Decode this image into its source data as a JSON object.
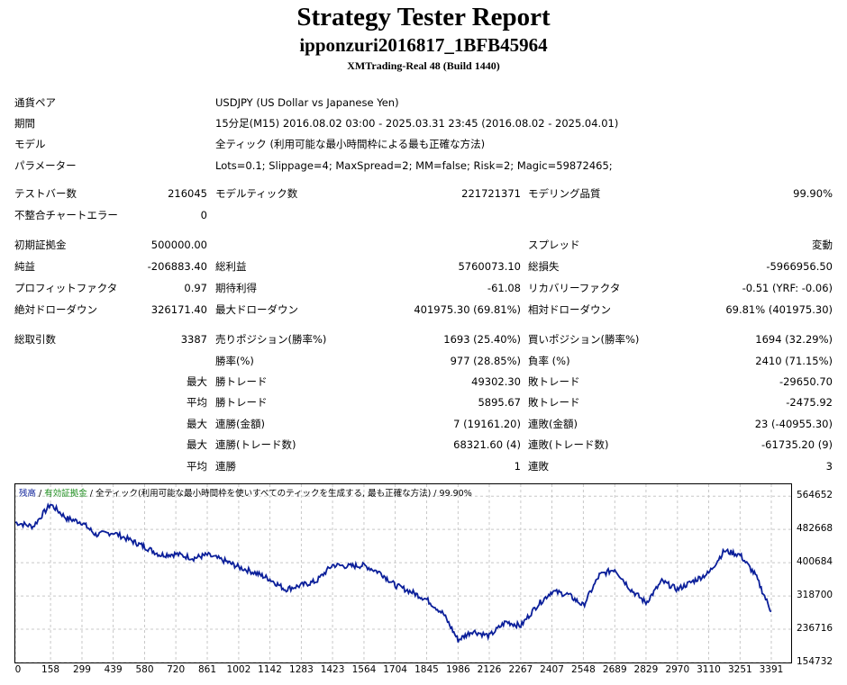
{
  "header": {
    "title": "Strategy Tester Report",
    "subtitle": "ipponzuri2016817_1BFB45964",
    "server": "XMTrading-Real 48 (Build 1440)"
  },
  "info": {
    "pair_label": "通貨ペア",
    "pair_value": "USDJPY (US Dollar vs Japanese Yen)",
    "period_label": "期間",
    "period_value": "15分足(M15) 2016.08.02 03:00 - 2025.03.31 23:45 (2016.08.02 - 2025.04.01)",
    "model_label": "モデル",
    "model_value": "全ティック (利用可能な最小時間枠による最も正確な方法)",
    "params_label": "パラメーター",
    "params_value": "Lots=0.1; Slippage=4; MaxSpread=2; MM=false; Risk=2; Magic=59872465;"
  },
  "stats": {
    "bars_label": "テストバー数",
    "bars_value": "216045",
    "ticks_label": "モデルティック数",
    "ticks_value": "221721371",
    "quality_label": "モデリング品質",
    "quality_value": "99.90%",
    "mismatch_label": "不整合チャートエラー",
    "mismatch_value": "0",
    "deposit_label": "初期証拠金",
    "deposit_value": "500000.00",
    "spread_label": "スプレッド",
    "spread_value": "変動",
    "net_label": "純益",
    "net_value": "-206883.40",
    "gross_profit_label": "総利益",
    "gross_profit_value": "5760073.10",
    "gross_loss_label": "総損失",
    "gross_loss_value": "-5966956.50",
    "pf_label": "プロフィットファクタ",
    "pf_value": "0.97",
    "expected_label": "期待利得",
    "expected_value": "-61.08",
    "recovery_label": "リカバリーファクタ",
    "recovery_value": "-0.51 (YRF: -0.06)",
    "abs_dd_label": "絶対ドローダウン",
    "abs_dd_value": "326171.40",
    "max_dd_label": "最大ドローダウン",
    "max_dd_value": "401975.30 (69.81%)",
    "rel_dd_label": "相対ドローダウン",
    "rel_dd_value": "69.81% (401975.30)",
    "total_trades_label": "総取引数",
    "total_trades_value": "3387",
    "short_label": "売りポジション(勝率%)",
    "short_value": "1693 (25.40%)",
    "long_label": "買いポジション(勝率%)",
    "long_value": "1694 (32.29%)",
    "win_pct_label": "勝率(%)",
    "win_pct_value": "977 (28.85%)",
    "loss_pct_label": "負率 (%)",
    "loss_pct_value": "2410 (71.15%)",
    "max_word": "最大",
    "avg_word": "平均",
    "win_trade_label": "勝トレード",
    "loss_trade_label": "敗トレード",
    "largest_win_value": "49302.30",
    "largest_loss_value": "-29650.70",
    "avg_win_value": "5895.67",
    "avg_loss_value": "-2475.92",
    "consec_win_amt_label": "連勝(金額)",
    "consec_win_amt_value": "7 (19161.20)",
    "consec_loss_amt_label": "連敗(金額)",
    "consec_loss_amt_value": "23 (-40955.30)",
    "consec_win_cnt_label": "連勝(トレード数)",
    "consec_win_cnt_value": "68321.60 (4)",
    "consec_loss_cnt_label": "連敗(トレード数)",
    "consec_loss_cnt_value": "-61735.20 (9)",
    "avg_consec_win_label": "連勝",
    "avg_consec_win_value": "1",
    "avg_consec_loss_label": "連敗",
    "avg_consec_loss_value": "3"
  },
  "chart_legend": {
    "balance": "残高",
    "equity": "有効証拠金",
    "mid": " / 全ティック(利用可能な最小時間枠を使いすべてのティックを生成する, 最も正確な方法) / 99.90%"
  },
  "colors": {
    "balance_line": "#0b1f9a",
    "equity_legend": "#1f8f1f",
    "grid": "#c8c8c8"
  },
  "chart_data": {
    "type": "line",
    "series": [
      {
        "name": "残高",
        "x": [
          0,
          80,
          158,
          230,
          299,
          360,
          439,
          520,
          580,
          650,
          720,
          800,
          861,
          940,
          1002,
          1080,
          1142,
          1210,
          1283,
          1350,
          1423,
          1500,
          1564,
          1640,
          1704,
          1780,
          1845,
          1920,
          1986,
          2050,
          2126,
          2200,
          2267,
          2340,
          2407,
          2480,
          2548,
          2620,
          2689,
          2760,
          2829,
          2900,
          2970,
          3040,
          3110,
          3180,
          3251,
          3320,
          3391
        ],
        "values": [
          500000,
          490000,
          545000,
          510000,
          500000,
          470000,
          475000,
          455000,
          440000,
          420000,
          422000,
          412000,
          420000,
          405000,
          390000,
          375000,
          360000,
          335000,
          345000,
          355000,
          395000,
          392000,
          394000,
          375000,
          345000,
          328000,
          310000,
          275000,
          210000,
          232000,
          220000,
          255000,
          245000,
          295000,
          330000,
          322000,
          295000,
          370000,
          385000,
          335000,
          302000,
          355000,
          335000,
          355000,
          375000,
          430000,
          420000,
          370000,
          280000
        ]
      }
    ],
    "yticks": [
      154732,
      236716,
      318700,
      400684,
      482668,
      564652
    ],
    "xticks": [
      0,
      158,
      299,
      439,
      580,
      720,
      861,
      1002,
      1142,
      1283,
      1423,
      1564,
      1704,
      1845,
      1986,
      2126,
      2267,
      2407,
      2548,
      2689,
      2829,
      2970,
      3110,
      3251,
      3391
    ],
    "ylim": [
      154732,
      594000
    ],
    "xlim": [
      0,
      3480
    ],
    "grid": true
  }
}
